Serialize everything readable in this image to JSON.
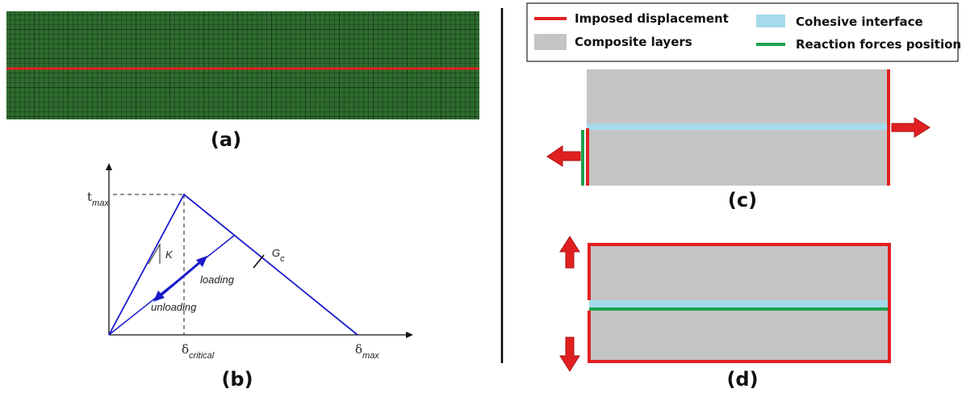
{
  "panels": {
    "a": {
      "label": "(a)"
    },
    "b": {
      "label": "(b)",
      "t_max": {
        "base": "t",
        "sub": "max"
      },
      "stiffness": "K",
      "fracture_energy": {
        "base": "G",
        "sub": "c"
      },
      "loading": "loading",
      "unloading": "unloading",
      "delta_critical": {
        "base": "δ",
        "sub": "critical"
      },
      "delta_max": {
        "base": "δ",
        "sub": "max"
      }
    },
    "c": {
      "label": "(c)"
    },
    "d": {
      "label": "(d)"
    }
  },
  "legend": {
    "items": [
      {
        "text": "Imposed displacement",
        "color": "#e02020"
      },
      {
        "text": "Composite layers",
        "color": "#c4c4c4"
      },
      {
        "text": "Cohesive interface",
        "color": "#a5dbeb"
      },
      {
        "text": "Reaction forces position",
        "color": "#1aa34a"
      }
    ]
  },
  "colors": {
    "mesh": "#1f5a1f",
    "imposed": "#e02020",
    "composite": "#c4c4c4",
    "cohesive": "#a5dbeb",
    "reaction": "#1aa34a",
    "law": "#1a1acc"
  }
}
